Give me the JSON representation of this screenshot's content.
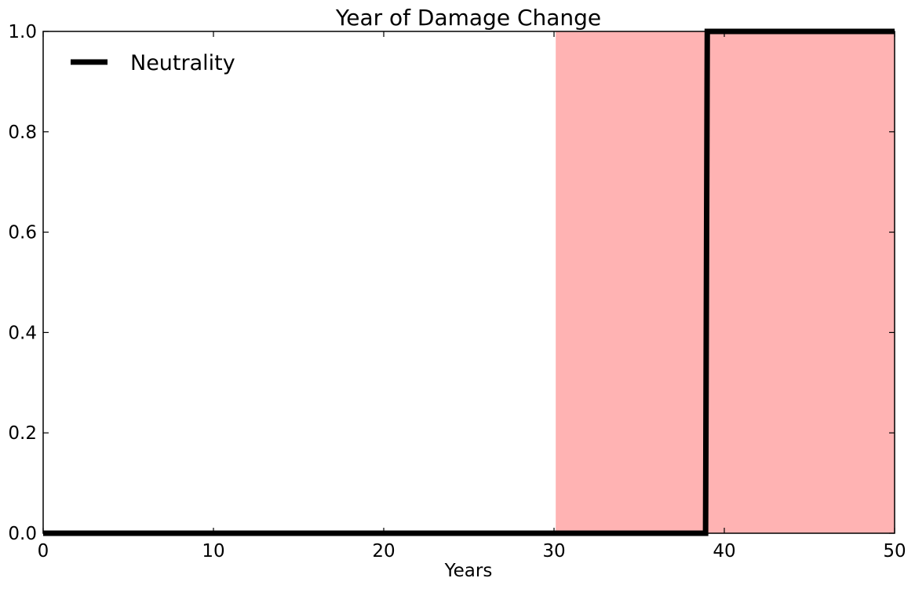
{
  "chart_data": {
    "type": "line",
    "title": "Year of Damage Change",
    "xlabel": "Years",
    "ylabel": "",
    "xlim": [
      0,
      50
    ],
    "ylim": [
      0.0,
      1.0
    ],
    "x_ticks": [
      0,
      10,
      20,
      30,
      40,
      50
    ],
    "x_tick_labels": [
      "0",
      "10",
      "20",
      "30",
      "40",
      "50"
    ],
    "y_ticks": [
      0.0,
      0.2,
      0.4,
      0.6,
      0.8,
      1.0
    ],
    "y_tick_labels": [
      "0.0",
      "0.2",
      "0.4",
      "0.6",
      "0.8",
      "1.0"
    ],
    "grid": false,
    "legend_position": "top-left",
    "shaded_region": {
      "x_start": 30.1,
      "x_end": 50,
      "color": "#ffb3b3"
    },
    "series": [
      {
        "name": "Neutrality",
        "color": "#000000",
        "x": [
          0,
          38.9,
          39.0,
          50
        ],
        "values": [
          0,
          0,
          1,
          1
        ]
      }
    ]
  }
}
